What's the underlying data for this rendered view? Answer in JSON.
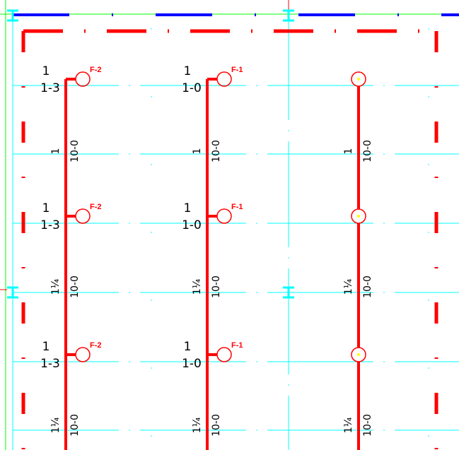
{
  "colors": {
    "pipe": "#ff0000",
    "wall": "#ff0000",
    "grid": "#00ffff",
    "beam": "#0000ff",
    "frame": "#00ff00",
    "text": "#000000",
    "sprinkler_center": "#ffff00"
  },
  "icons": {
    "sprinkler": "sprinkler-head-icon",
    "column": "column-i-beam-icon"
  },
  "columns": [
    {
      "id": "left",
      "rows": [
        {
          "count": "1",
          "pipe": "1-3",
          "tag": "F-2",
          "seg_count": "1",
          "seg_length": "10-0"
        },
        {
          "count": "1",
          "pipe": "1-3",
          "tag": "F-2",
          "seg_count": "1¼",
          "seg_length": "10-0"
        },
        {
          "count": "1",
          "pipe": "1-3",
          "tag": "F-2",
          "seg_count": "1¼",
          "seg_length": "10-0"
        }
      ]
    },
    {
      "id": "middle",
      "rows": [
        {
          "count": "1",
          "pipe": "1-0",
          "tag": "F-1",
          "seg_count": "1",
          "seg_length": "10-0"
        },
        {
          "count": "1",
          "pipe": "1-0",
          "tag": "F-1",
          "seg_count": "1¼",
          "seg_length": "10-0"
        },
        {
          "count": "1",
          "pipe": "1-0",
          "tag": "F-1",
          "seg_count": "1¼",
          "seg_length": "10-0"
        }
      ]
    },
    {
      "id": "right",
      "rows": [
        {
          "seg_count": "1",
          "seg_length": "10-0"
        },
        {
          "seg_count": "1¼",
          "seg_length": "10-0"
        },
        {
          "seg_count": "1¼",
          "seg_length": "10-0"
        }
      ]
    }
  ]
}
